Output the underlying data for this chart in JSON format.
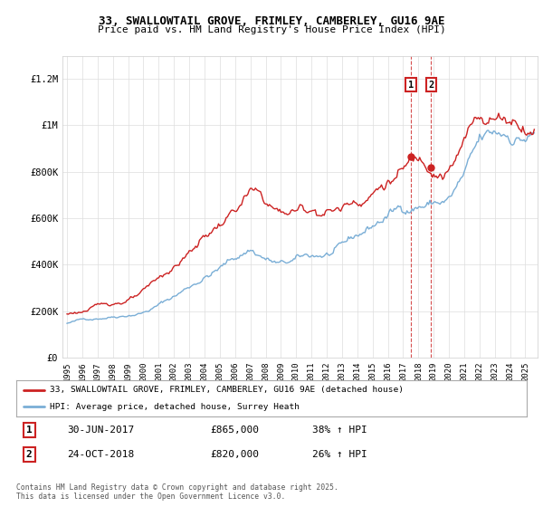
{
  "title_line1": "33, SWALLOWTAIL GROVE, FRIMLEY, CAMBERLEY, GU16 9AE",
  "title_line2": "Price paid vs. HM Land Registry's House Price Index (HPI)",
  "ylabel_ticks": [
    "£0",
    "£200K",
    "£400K",
    "£600K",
    "£800K",
    "£1M",
    "£1.2M"
  ],
  "ytick_values": [
    0,
    200000,
    400000,
    600000,
    800000,
    1000000,
    1200000
  ],
  "ylim": [
    0,
    1300000
  ],
  "xlim_start": 1994.7,
  "xlim_end": 2025.8,
  "xtick_years": [
    1995,
    1996,
    1997,
    1998,
    1999,
    2000,
    2001,
    2002,
    2003,
    2004,
    2005,
    2006,
    2007,
    2008,
    2009,
    2010,
    2011,
    2012,
    2013,
    2014,
    2015,
    2016,
    2017,
    2018,
    2019,
    2020,
    2021,
    2022,
    2023,
    2024,
    2025
  ],
  "line1_color": "#cc2222",
  "line2_color": "#7aaed6",
  "vline_color": "#cc2222",
  "marker1_x": 2017.5,
  "marker2_x": 2018.83,
  "marker1_y": 865000,
  "marker2_y": 820000,
  "legend_line1": "33, SWALLOWTAIL GROVE, FRIMLEY, CAMBERLEY, GU16 9AE (detached house)",
  "legend_line2": "HPI: Average price, detached house, Surrey Heath",
  "transaction1_label": "1",
  "transaction1_date": "30-JUN-2017",
  "transaction1_price": "£865,000",
  "transaction1_info": "38% ↑ HPI",
  "transaction2_label": "2",
  "transaction2_date": "24-OCT-2018",
  "transaction2_price": "£820,000",
  "transaction2_info": "26% ↑ HPI",
  "footer": "Contains HM Land Registry data © Crown copyright and database right 2025.\nThis data is licensed under the Open Government Licence v3.0.",
  "background_color": "#ffffff",
  "grid_color": "#dddddd"
}
